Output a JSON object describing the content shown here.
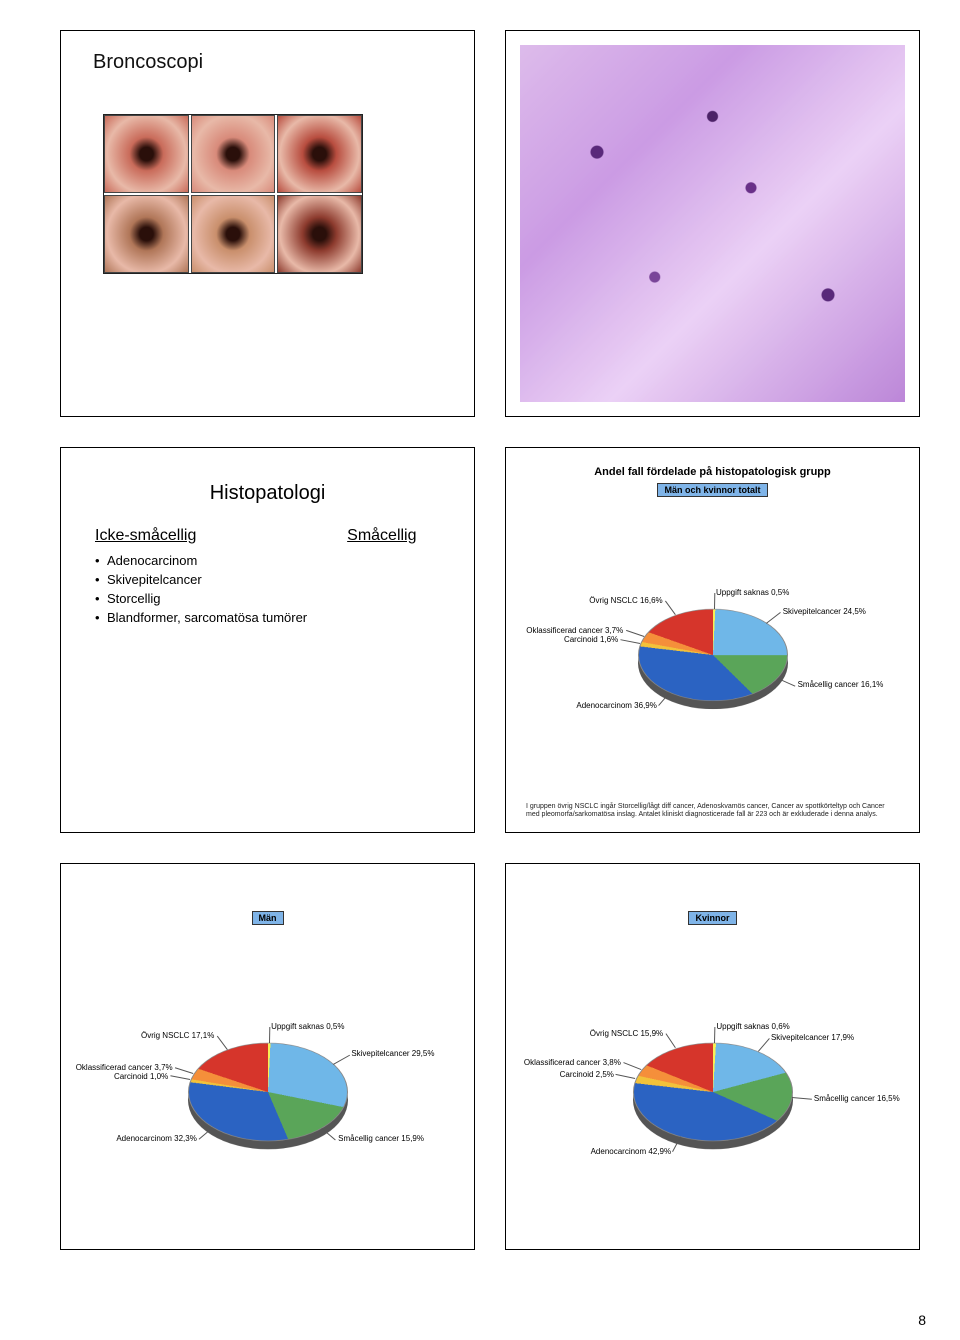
{
  "page_number": "8",
  "slide1": {
    "title": "Broncoscopi",
    "bronco_colors": [
      "#c96b5a",
      "#d88a7a",
      "#b84d3f",
      "#b07658",
      "#c98f6c",
      "#8d3b2e"
    ]
  },
  "slide3": {
    "title": "Histopatologi",
    "col1_heading": "Icke-småcellig",
    "col2_heading": "Småcellig",
    "items": [
      "Adenocarcinom",
      "Skivepitelcancer",
      "Storcellig",
      "Blandformer, sarcomatösa tumörer"
    ]
  },
  "chart_total": {
    "title": "Andel fall fördelade på histopatologisk grupp",
    "badge": "Män och kvinnor totalt",
    "segments": [
      {
        "label": "Uppgift saknas 0,5%",
        "value": 0.5,
        "color": "#f7f056"
      },
      {
        "label": "Skivepitelcancer 24,5%",
        "value": 24.5,
        "color": "#6fb7e8"
      },
      {
        "label": "Småcellig cancer 16,1%",
        "value": 16.1,
        "color": "#5aa559"
      },
      {
        "label": "Adenocarcinom 36,9%",
        "value": 36.9,
        "color": "#2b63c2"
      },
      {
        "label": "Carcinoid 1,6%",
        "value": 1.6,
        "color": "#f2c23a"
      },
      {
        "label": "Oklassificerad cancer 3,7%",
        "value": 3.7,
        "color": "#f58f3a"
      },
      {
        "label": "Övrig NSCLC 16,6%",
        "value": 16.6,
        "color": "#d6352b"
      }
    ],
    "footnote": "I gruppen övrig NSCLC ingår Storcellig/lågt diff cancer, Adenoskvamös cancer, Cancer av spottkörteltyp och Cancer med pleomorfa/sarkomatösa inslag. Antalet kliniskt diagnosticerade fall är 223 och är exkluderade i denna analys."
  },
  "chart_men": {
    "badge": "Män",
    "segments": [
      {
        "label": "Uppgift saknas 0,5%",
        "value": 0.5,
        "color": "#f7f056"
      },
      {
        "label": "Skivepitelcancer 29,5%",
        "value": 29.5,
        "color": "#6fb7e8"
      },
      {
        "label": "Småcellig cancer 15,9%",
        "value": 15.9,
        "color": "#5aa559"
      },
      {
        "label": "Adenocarcinom 32,3%",
        "value": 32.3,
        "color": "#2b63c2"
      },
      {
        "label": "Carcinoid 1,0%",
        "value": 1.0,
        "color": "#f2c23a"
      },
      {
        "label": "Oklassificerad cancer 3,7%",
        "value": 3.7,
        "color": "#f58f3a"
      },
      {
        "label": "Övrig NSCLC 17,1%",
        "value": 17.1,
        "color": "#d6352b"
      }
    ]
  },
  "chart_women": {
    "badge": "Kvinnor",
    "segments": [
      {
        "label": "Uppgift saknas 0,6%",
        "value": 0.6,
        "color": "#f7f056"
      },
      {
        "label": "Skivepitelcancer 17,9%",
        "value": 17.9,
        "color": "#6fb7e8"
      },
      {
        "label": "Småcellig cancer 16,5%",
        "value": 16.5,
        "color": "#5aa559"
      },
      {
        "label": "Adenocarcinom 42,9%",
        "value": 42.9,
        "color": "#2b63c2"
      },
      {
        "label": "Carcinoid 2,5%",
        "value": 2.5,
        "color": "#f2c23a"
      },
      {
        "label": "Oklassificerad cancer 3,8%",
        "value": 3.8,
        "color": "#f58f3a"
      },
      {
        "label": "Övrig NSCLC 15,9%",
        "value": 15.9,
        "color": "#d6352b"
      }
    ]
  }
}
